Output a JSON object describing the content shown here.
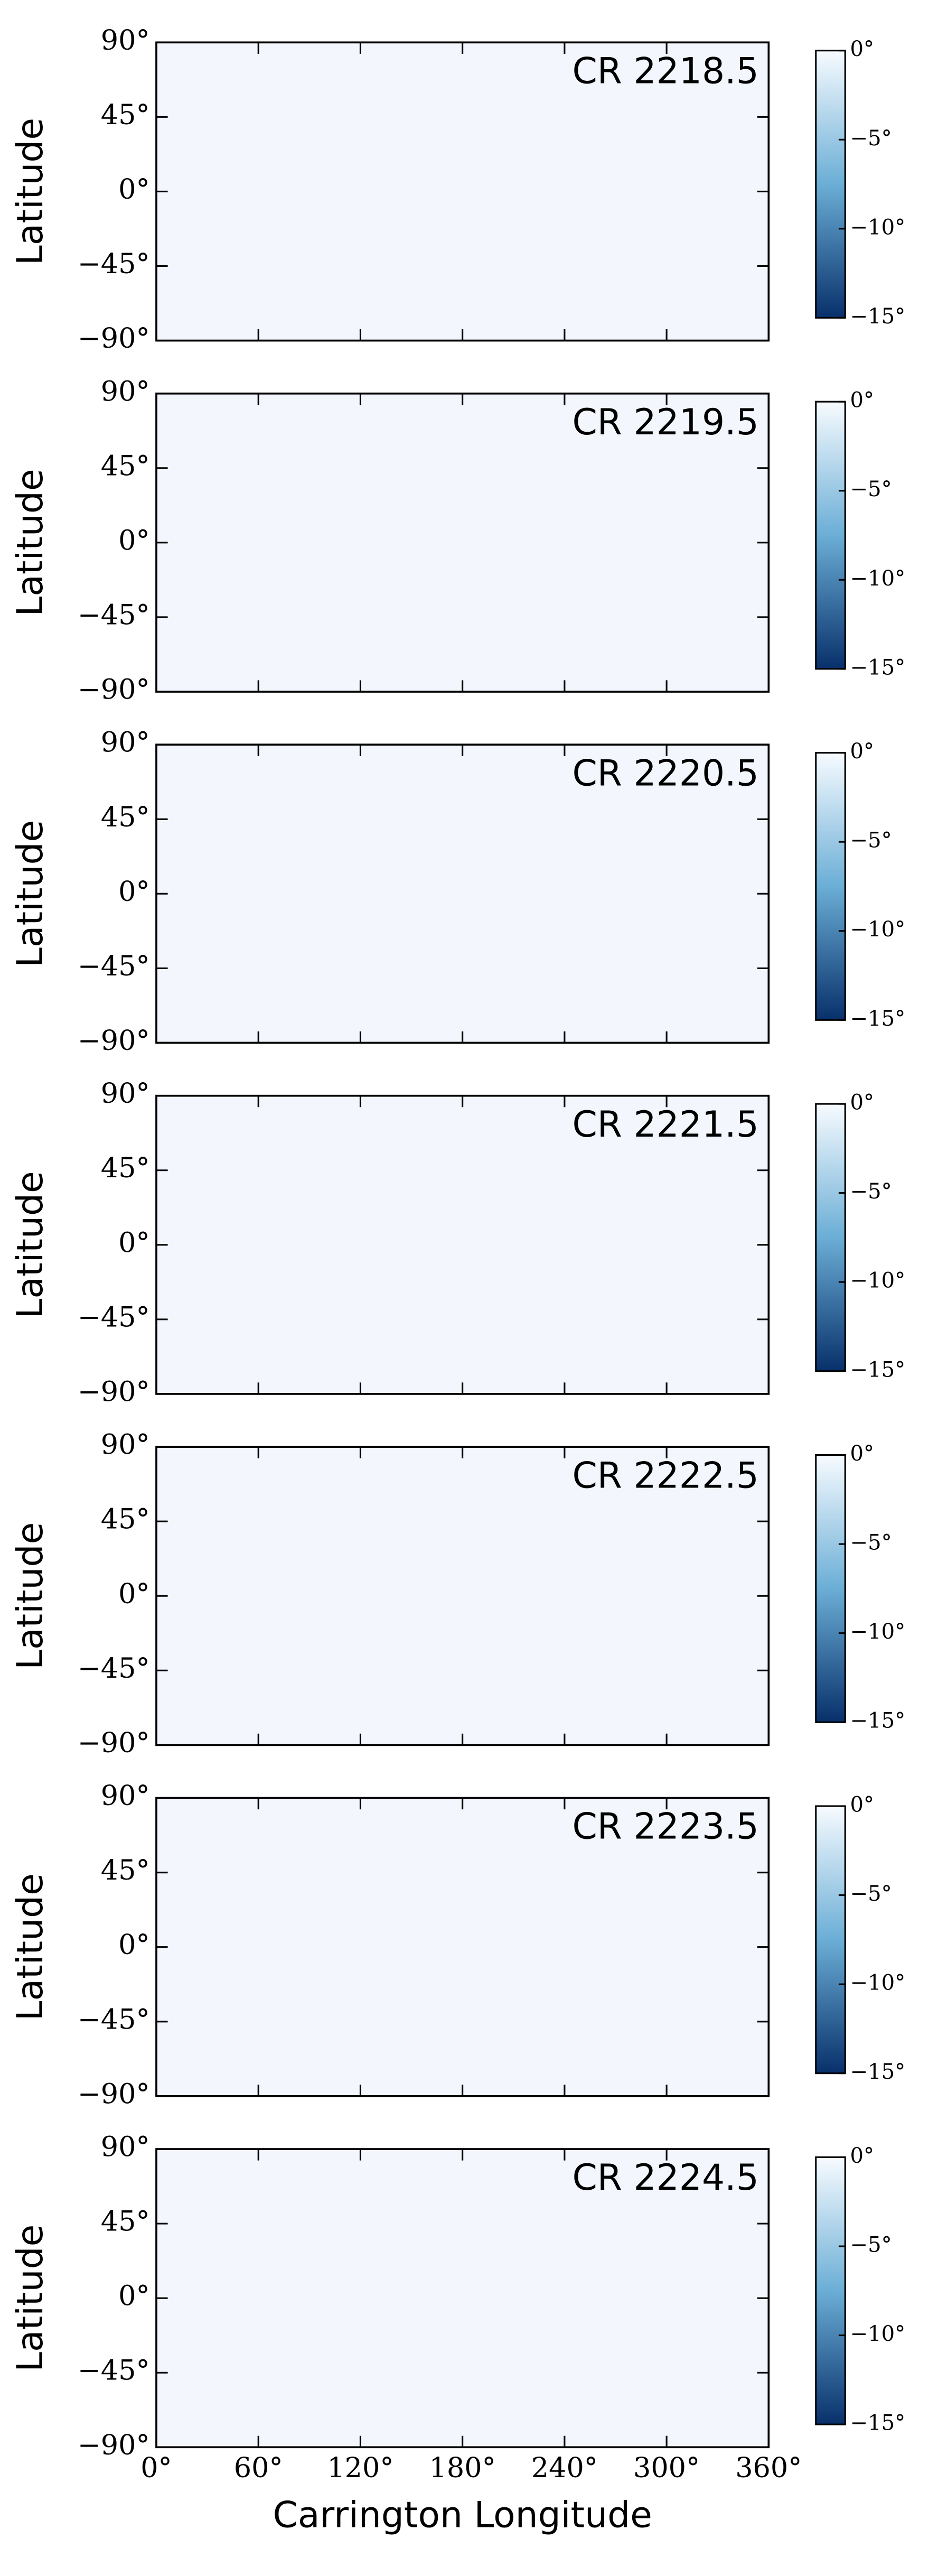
{
  "chart_data": [
    {
      "type": "heatmap",
      "title": "CR 2218.5",
      "ylabel": "Latitude",
      "ylim": [
        -90,
        90
      ],
      "yticks": [
        {
          "value": -90,
          "label": "−90°"
        },
        {
          "value": -45,
          "label": "−45°"
        },
        {
          "value": 0,
          "label": "0°"
        },
        {
          "value": 45,
          "label": "45°"
        },
        {
          "value": 90,
          "label": "90°"
        }
      ],
      "colorbar": {
        "lim": [
          -15,
          0
        ],
        "ticks": [
          {
            "value": 0,
            "label": "0°"
          },
          {
            "value": -5,
            "label": "−5°"
          },
          {
            "value": -10,
            "label": "−10°"
          },
          {
            "value": -15,
            "label": "−15°"
          }
        ],
        "colors": [
          "#08306b",
          "#f7fbff"
        ]
      }
    },
    {
      "type": "heatmap",
      "title": "CR 2219.5",
      "ylabel": "Latitude",
      "ylim": [
        -90,
        90
      ],
      "yticks": [
        {
          "value": -90,
          "label": "−90°"
        },
        {
          "value": -45,
          "label": "−45°"
        },
        {
          "value": 0,
          "label": "0°"
        },
        {
          "value": 45,
          "label": "45°"
        },
        {
          "value": 90,
          "label": "90°"
        }
      ],
      "colorbar": {
        "lim": [
          -15,
          0
        ],
        "ticks": [
          {
            "value": 0,
            "label": "0°"
          },
          {
            "value": -5,
            "label": "−5°"
          },
          {
            "value": -10,
            "label": "−10°"
          },
          {
            "value": -15,
            "label": "−15°"
          }
        ],
        "colors": [
          "#08306b",
          "#f7fbff"
        ]
      }
    },
    {
      "type": "heatmap",
      "title": "CR 2220.5",
      "ylabel": "Latitude",
      "ylim": [
        -90,
        90
      ],
      "yticks": [
        {
          "value": -90,
          "label": "−90°"
        },
        {
          "value": -45,
          "label": "−45°"
        },
        {
          "value": 0,
          "label": "0°"
        },
        {
          "value": 45,
          "label": "45°"
        },
        {
          "value": 90,
          "label": "90°"
        }
      ],
      "colorbar": {
        "lim": [
          -15,
          0
        ],
        "ticks": [
          {
            "value": 0,
            "label": "0°"
          },
          {
            "value": -5,
            "label": "−5°"
          },
          {
            "value": -10,
            "label": "−10°"
          },
          {
            "value": -15,
            "label": "−15°"
          }
        ],
        "colors": [
          "#08306b",
          "#f7fbff"
        ]
      }
    },
    {
      "type": "heatmap",
      "title": "CR 2221.5",
      "ylabel": "Latitude",
      "ylim": [
        -90,
        90
      ],
      "yticks": [
        {
          "value": -90,
          "label": "−90°"
        },
        {
          "value": -45,
          "label": "−45°"
        },
        {
          "value": 0,
          "label": "0°"
        },
        {
          "value": 45,
          "label": "45°"
        },
        {
          "value": 90,
          "label": "90°"
        }
      ],
      "colorbar": {
        "lim": [
          -15,
          0
        ],
        "ticks": [
          {
            "value": 0,
            "label": "0°"
          },
          {
            "value": -5,
            "label": "−5°"
          },
          {
            "value": -10,
            "label": "−10°"
          },
          {
            "value": -15,
            "label": "−15°"
          }
        ],
        "colors": [
          "#08306b",
          "#f7fbff"
        ]
      }
    },
    {
      "type": "heatmap",
      "title": "CR 2222.5",
      "ylabel": "Latitude",
      "ylim": [
        -90,
        90
      ],
      "yticks": [
        {
          "value": -90,
          "label": "−90°"
        },
        {
          "value": -45,
          "label": "−45°"
        },
        {
          "value": 0,
          "label": "0°"
        },
        {
          "value": 45,
          "label": "45°"
        },
        {
          "value": 90,
          "label": "90°"
        }
      ],
      "colorbar": {
        "lim": [
          -15,
          0
        ],
        "ticks": [
          {
            "value": 0,
            "label": "0°"
          },
          {
            "value": -5,
            "label": "−5°"
          },
          {
            "value": -10,
            "label": "−10°"
          },
          {
            "value": -15,
            "label": "−15°"
          }
        ],
        "colors": [
          "#08306b",
          "#f7fbff"
        ]
      }
    },
    {
      "type": "heatmap",
      "title": "CR 2223.5",
      "ylabel": "Latitude",
      "ylim": [
        -90,
        90
      ],
      "yticks": [
        {
          "value": -90,
          "label": "−90°"
        },
        {
          "value": -45,
          "label": "−45°"
        },
        {
          "value": 0,
          "label": "0°"
        },
        {
          "value": 45,
          "label": "45°"
        },
        {
          "value": 90,
          "label": "90°"
        }
      ],
      "colorbar": {
        "lim": [
          -15,
          0
        ],
        "ticks": [
          {
            "value": 0,
            "label": "0°"
          },
          {
            "value": -5,
            "label": "−5°"
          },
          {
            "value": -10,
            "label": "−10°"
          },
          {
            "value": -15,
            "label": "−15°"
          }
        ],
        "colors": [
          "#08306b",
          "#f7fbff"
        ]
      }
    },
    {
      "type": "heatmap",
      "title": "CR 2224.5",
      "ylabel": "Latitude",
      "xlabel": "Carrington Longitude",
      "ylim": [
        -90,
        90
      ],
      "yticks": [
        {
          "value": -90,
          "label": "−90°"
        },
        {
          "value": -45,
          "label": "−45°"
        },
        {
          "value": 0,
          "label": "0°"
        },
        {
          "value": 45,
          "label": "45°"
        },
        {
          "value": 90,
          "label": "90°"
        }
      ],
      "xlim": [
        0,
        360
      ],
      "xticks": [
        {
          "value": 0,
          "label": "0°"
        },
        {
          "value": 60,
          "label": "60°"
        },
        {
          "value": 120,
          "label": "120°"
        },
        {
          "value": 180,
          "label": "180°"
        },
        {
          "value": 240,
          "label": "240°"
        },
        {
          "value": 300,
          "label": "300°"
        },
        {
          "value": 360,
          "label": "360°"
        }
      ],
      "colorbar": {
        "lim": [
          -15,
          0
        ],
        "ticks": [
          {
            "value": 0,
            "label": "0°"
          },
          {
            "value": -5,
            "label": "−5°"
          },
          {
            "value": -10,
            "label": "−10°"
          },
          {
            "value": -15,
            "label": "−15°"
          }
        ],
        "colors": [
          "#08306b",
          "#f7fbff"
        ]
      }
    }
  ]
}
